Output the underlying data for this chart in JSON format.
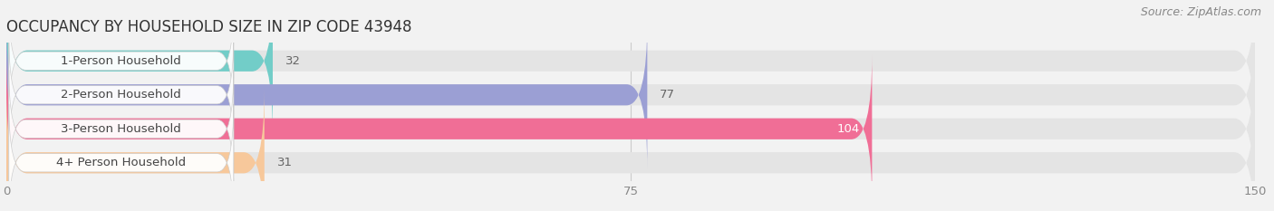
{
  "title": "OCCUPANCY BY HOUSEHOLD SIZE IN ZIP CODE 43948",
  "source": "Source: ZipAtlas.com",
  "categories": [
    "1-Person Household",
    "2-Person Household",
    "3-Person Household",
    "4+ Person Household"
  ],
  "values": [
    32,
    77,
    104,
    31
  ],
  "bar_colors": [
    "#72cdc8",
    "#9b9fd4",
    "#f06e96",
    "#f7c89b"
  ],
  "value_inside": [
    false,
    false,
    true,
    false
  ],
  "xlim": [
    0,
    150
  ],
  "xticks": [
    0,
    75,
    150
  ],
  "background_color": "#f2f2f2",
  "bar_bg_color": "#e4e4e4",
  "title_fontsize": 12,
  "source_fontsize": 9,
  "label_fontsize": 9.5,
  "value_fontsize": 9.5,
  "bar_height": 0.62,
  "figsize": [
    14.06,
    2.33
  ]
}
